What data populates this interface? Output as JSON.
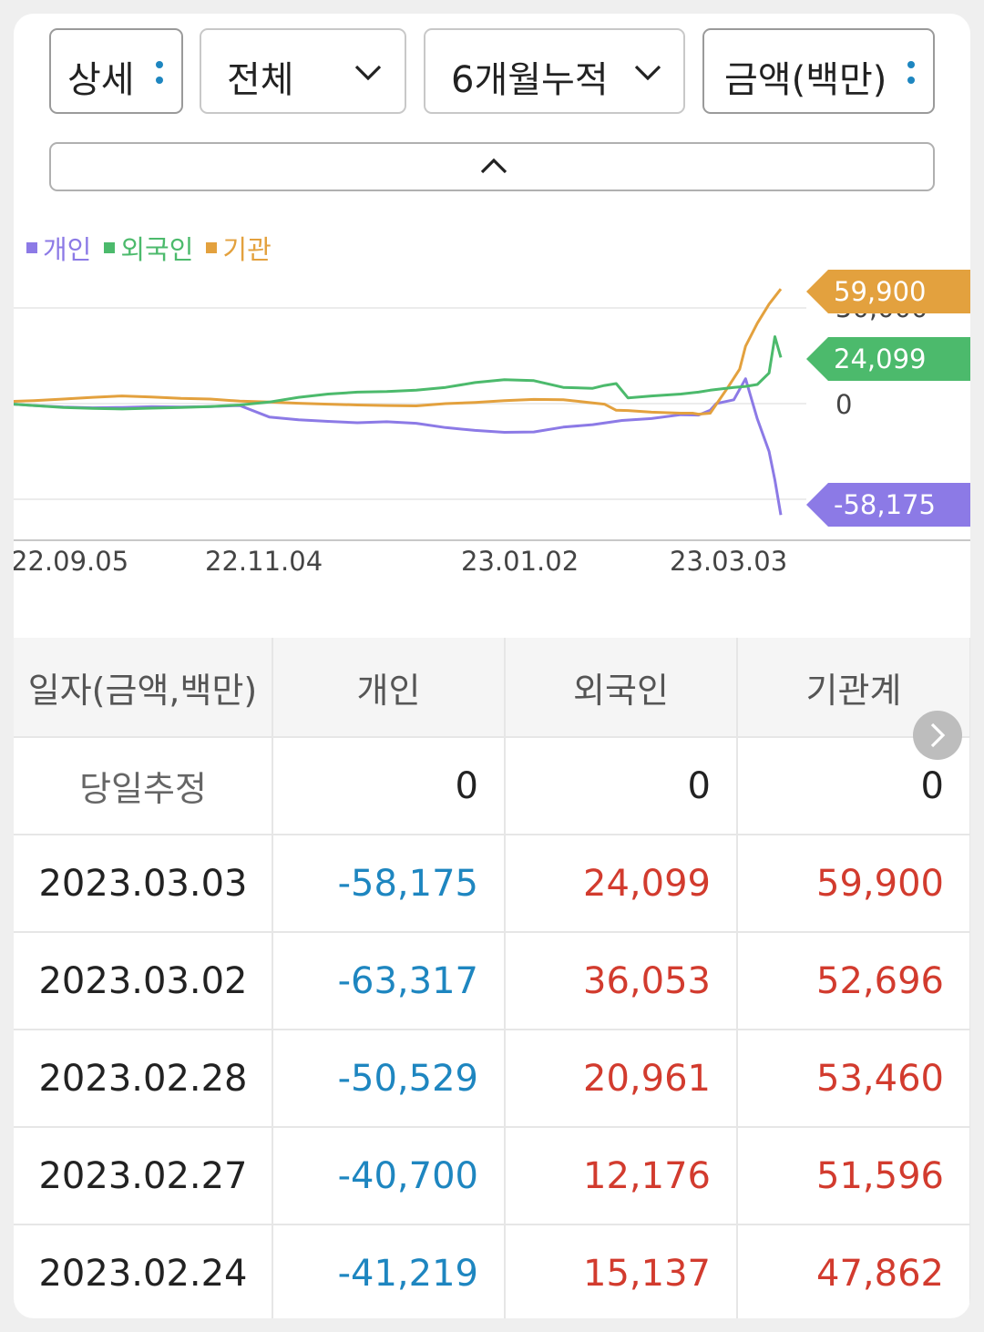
{
  "filters": {
    "view": "상세",
    "investor": "전체",
    "period": "6개월누적",
    "unit": "금액(백만)"
  },
  "colors": {
    "individual": "#8c7ae6",
    "foreign": "#4cba6c",
    "institution": "#e3a13e",
    "negative": "#1e86c0",
    "positive": "#d23b2e"
  },
  "icons": {
    "view_menu": "vertical-dots-icon",
    "investor_dropdown": "chevron-down-icon",
    "period_dropdown": "chevron-down-icon",
    "unit_menu": "vertical-dots-icon",
    "collapse": "chevron-up-icon",
    "scroll": "chevron-right-icon"
  },
  "chart_data": {
    "type": "line",
    "legend_position": "top-left",
    "grid": true,
    "x_ticks": [
      "22.09.05",
      "22.11.04",
      "23.01.02",
      "23.03.03"
    ],
    "y_tick_labels": [
      "50,000",
      "0"
    ],
    "ylim": [
      -73000,
      73000
    ],
    "series": [
      {
        "name": "개인",
        "color": "#8c7ae6",
        "last_value": "-58,175",
        "x": [
          0,
          5,
          10,
          15,
          20,
          25,
          30,
          35,
          40,
          45,
          50,
          55,
          60,
          65,
          70,
          75,
          80,
          85,
          90,
          95,
          100,
          105,
          110,
          115,
          118,
          120,
          121,
          124,
          126,
          128,
          130,
          131,
          132
        ],
        "values": [
          0,
          -1000,
          -1800,
          -2200,
          -2000,
          -1600,
          -1800,
          -1500,
          -1000,
          -7000,
          -8500,
          -9300,
          -10000,
          -9500,
          -10300,
          -12500,
          -14000,
          -15000,
          -14800,
          -12300,
          -11000,
          -8800,
          -7800,
          -5800,
          -6000,
          -3500,
          0,
          2000,
          13000,
          -8000,
          -25000,
          -40000,
          -58175
        ]
      },
      {
        "name": "외국인",
        "color": "#4cba6c",
        "last_value": "24,099",
        "x": [
          0,
          5,
          10,
          15,
          20,
          25,
          30,
          35,
          40,
          45,
          50,
          55,
          60,
          65,
          70,
          75,
          80,
          85,
          90,
          95,
          100,
          102,
          104,
          106,
          110,
          115,
          118,
          120,
          124,
          126,
          128,
          130,
          131,
          132
        ],
        "values": [
          0,
          -1000,
          -2000,
          -2500,
          -2800,
          -2400,
          -2000,
          -1500,
          -700,
          800,
          3300,
          5000,
          6000,
          6300,
          7000,
          8500,
          11000,
          12500,
          12000,
          8500,
          8000,
          9500,
          10500,
          3000,
          4000,
          5000,
          6000,
          7000,
          8500,
          9000,
          10000,
          16000,
          35000,
          24099
        ]
      },
      {
        "name": "기관",
        "color": "#e3a13e",
        "last_value": "59,900",
        "x": [
          0,
          5,
          10,
          15,
          20,
          25,
          30,
          35,
          40,
          45,
          50,
          55,
          60,
          65,
          70,
          75,
          80,
          85,
          90,
          95,
          100,
          102,
          104,
          106,
          110,
          115,
          117,
          118,
          120,
          123,
          125,
          126,
          128,
          130,
          132
        ],
        "values": [
          1000,
          1500,
          2400,
          3300,
          4000,
          3500,
          2700,
          2400,
          1300,
          800,
          200,
          -300,
          -700,
          -1000,
          -1200,
          0,
          600,
          1500,
          2200,
          2000,
          400,
          -300,
          -3500,
          -3600,
          -4500,
          -5000,
          -5000,
          -5500,
          -5000,
          8500,
          18000,
          30000,
          42000,
          52000,
          59900
        ]
      }
    ]
  },
  "table": {
    "headers": [
      "일자(금액,백만)",
      "개인",
      "외국인",
      "기관계"
    ],
    "rows": [
      {
        "date": "당일추정",
        "individual": "0",
        "foreign": "0",
        "institution": "0"
      },
      {
        "date": "2023.03.03",
        "individual": "-58,175",
        "foreign": "24,099",
        "institution": "59,900"
      },
      {
        "date": "2023.03.02",
        "individual": "-63,317",
        "foreign": "36,053",
        "institution": "52,696"
      },
      {
        "date": "2023.02.28",
        "individual": "-50,529",
        "foreign": "20,961",
        "institution": "53,460"
      },
      {
        "date": "2023.02.27",
        "individual": "-40,700",
        "foreign": "12,176",
        "institution": "51,596"
      },
      {
        "date": "2023.02.24",
        "individual": "-41,219",
        "foreign": "15,137",
        "institution": "47,862"
      }
    ]
  }
}
